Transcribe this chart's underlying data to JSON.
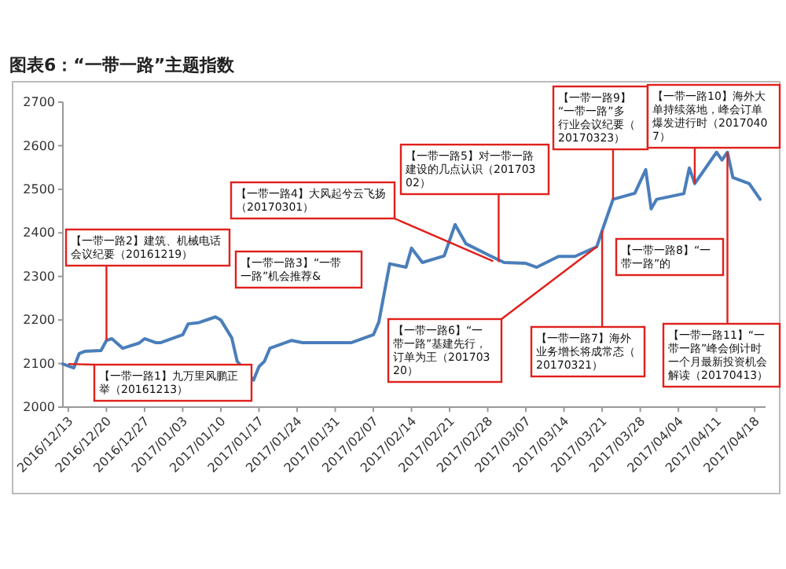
{
  "chart_data": {
    "type": "line",
    "title": "图表6：“一带一路”主题指数",
    "x": [
      "2016-12-12",
      "2016-12-14",
      "2016-12-15",
      "2016-12-16",
      "2016-12-19",
      "2016-12-20",
      "2016-12-21",
      "2016-12-23",
      "2016-12-26",
      "2016-12-27",
      "2016-12-29",
      "2016-12-30",
      "2017-01-03",
      "2017-01-04",
      "2017-01-06",
      "2017-01-09",
      "2017-01-10",
      "2017-01-12",
      "2017-01-13",
      "2017-01-16",
      "2017-01-17",
      "2017-01-18",
      "2017-01-19",
      "2017-01-23",
      "2017-01-25",
      "2017-01-26",
      "2017-02-03",
      "2017-02-07",
      "2017-02-08",
      "2017-02-10",
      "2017-02-13",
      "2017-02-14",
      "2017-02-16",
      "2017-02-20",
      "2017-02-22",
      "2017-02-24",
      "2017-02-28",
      "2017-03-03",
      "2017-03-07",
      "2017-03-09",
      "2017-03-13",
      "2017-03-16",
      "2017-03-20",
      "2017-03-21",
      "2017-03-23",
      "2017-03-27",
      "2017-03-29",
      "2017-03-30",
      "2017-03-31",
      "2017-04-05",
      "2017-04-06",
      "2017-04-07",
      "2017-04-11",
      "2017-04-12",
      "2017-04-13",
      "2017-04-14",
      "2017-04-17",
      "2017-04-19"
    ],
    "series": [
      {
        "color": "#4a7ebb",
        "values": [
          2099,
          2090,
          2123,
          2128,
          2130,
          2153,
          2157,
          2135,
          2147,
          2157,
          2148,
          2148,
          2166,
          2191,
          2194,
          2207,
          2200,
          2159,
          2105,
          2062,
          2093,
          2105,
          2135,
          2153,
          2148,
          2148,
          2148,
          2166,
          2195,
          2329,
          2321,
          2365,
          2332,
          2347,
          2419,
          2375,
          2350,
          2332,
          2330,
          2321,
          2346,
          2346,
          2368,
          2405,
          2477,
          2491,
          2545,
          2455,
          2477,
          2490,
          2549,
          2513,
          2585,
          2567,
          2585,
          2527,
          2513,
          2477
        ]
      }
    ],
    "xlim": [
      "2016-12-12",
      "2017-04-20"
    ],
    "xticks": [
      {
        "value": "2016-12-13",
        "label": "2016/12/13"
      },
      {
        "value": "2016-12-20",
        "label": "2016/12/20"
      },
      {
        "value": "2016-12-27",
        "label": "2016/12/27"
      },
      {
        "value": "2017-01-03",
        "label": "2017/01/03"
      },
      {
        "value": "2017-01-10",
        "label": "2017/01/10"
      },
      {
        "value": "2017-01-17",
        "label": "2017/01/17"
      },
      {
        "value": "2017-01-24",
        "label": "2017/01/24"
      },
      {
        "value": "2017-01-31",
        "label": "2017/01/31"
      },
      {
        "value": "2017-02-07",
        "label": "2017/02/07"
      },
      {
        "value": "2017-02-14",
        "label": "2017/02/14"
      },
      {
        "value": "2017-02-21",
        "label": "2017/02/21"
      },
      {
        "value": "2017-02-28",
        "label": "2017/02/28"
      },
      {
        "value": "2017-03-07",
        "label": "2017/03/07"
      },
      {
        "value": "2017-03-14",
        "label": "2017/03/14"
      },
      {
        "value": "2017-03-21",
        "label": "2017/03/21"
      },
      {
        "value": "2017-03-28",
        "label": "2017/03/28"
      },
      {
        "value": "2017-04-04",
        "label": "2017/04/04"
      },
      {
        "value": "2017-04-11",
        "label": "2017/04/11"
      },
      {
        "value": "2017-04-18",
        "label": "2017/04/18"
      }
    ],
    "ylim": [
      2000,
      2700
    ],
    "yticks": [
      2000,
      2100,
      2200,
      2300,
      2400,
      2500,
      2600,
      2700
    ],
    "grid": false,
    "marker": "none",
    "line_style": "solid",
    "annotations": [
      {
        "text": "【一带一路1】九万里风鹏正举（20161213）",
        "x": "2016-12-13",
        "y": 2099
      },
      {
        "text": "【一带一路2】建筑、机械电话会议纪要（20161219）",
        "x": "2016-12-20",
        "y": 2153
      },
      "【一带一路3】“一带一路”机会推荐&",
      {
        "text": "【一带一路4】大风起兮云飞扬（20170301）",
        "x": "2017-03-01",
        "y": 2335
      },
      {
        "text": "【一带一路5】对一带一路建设的几点认识（20170302）",
        "x": "2017-03-02",
        "y": 2333
      },
      {
        "text": "【一带一路6】“一带一路”基建先行，订单为王（20170320）",
        "x": "2017-03-20",
        "y": 2368
      },
      {
        "text": "【一带一路7】海外业务增长将成常态（20170321）",
        "x": "2017-03-21",
        "y": 2405
      },
      "【一带一路8】“一带一路”的",
      {
        "text": "【一带一路9】“一带一路”多行业会议纪要（20170323）",
        "x": "2017-03-23",
        "y": 2477
      },
      {
        "text": "【一带一路10】海外大单持续落地，峰会订单爆发进行时（20170407）",
        "x": "2017-04-07",
        "y": 2513
      },
      {
        "text": "【一带一路11】“一带一路”峰会倒计时一个月最新投资机会解读（20170413）",
        "x": "2017-04-13",
        "y": 2585
      }
    ]
  }
}
